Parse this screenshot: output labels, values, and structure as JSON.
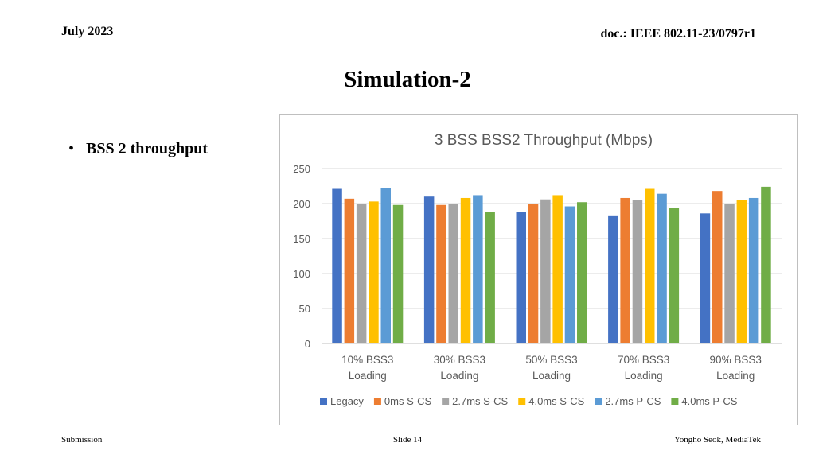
{
  "header": {
    "date": "July 2023",
    "doc": "doc.: IEEE 802.11-23/0797r1"
  },
  "slide_title": "Simulation-2",
  "bullets": [
    "BSS 2 throughput"
  ],
  "footer": {
    "left": "Submission",
    "center": "Slide 14",
    "right": "Yongho Seok, MediaTek"
  },
  "chart_data": {
    "type": "bar",
    "title": "3 BSS BSS2 Throughput (Mbps)",
    "xlabel": "",
    "ylabel": "",
    "ylim": [
      0,
      250
    ],
    "yticks": [
      0,
      50,
      100,
      150,
      200,
      250
    ],
    "grid": true,
    "legend_position": "bottom",
    "categories": [
      [
        "10% BSS3",
        "Loading"
      ],
      [
        "30% BSS3",
        "Loading"
      ],
      [
        "50% BSS3",
        "Loading"
      ],
      [
        "70% BSS3",
        "Loading"
      ],
      [
        "90% BSS3",
        "Loading"
      ]
    ],
    "series": [
      {
        "name": "Legacy",
        "color": "#4472C4",
        "values": [
          221,
          210,
          188,
          182,
          186
        ]
      },
      {
        "name": "0ms S-CS",
        "color": "#ED7D31",
        "values": [
          207,
          198,
          199,
          208,
          218
        ]
      },
      {
        "name": "2.7ms S-CS",
        "color": "#A5A5A5",
        "values": [
          200,
          200,
          206,
          205,
          199
        ]
      },
      {
        "name": "4.0ms S-CS",
        "color": "#FFC000",
        "values": [
          203,
          208,
          212,
          221,
          205
        ]
      },
      {
        "name": "2.7ms P-CS",
        "color": "#5B9BD5",
        "values": [
          222,
          212,
          196,
          214,
          208
        ]
      },
      {
        "name": "4.0ms P-CS",
        "color": "#70AD47",
        "values": [
          198,
          188,
          202,
          194,
          224
        ]
      }
    ]
  }
}
